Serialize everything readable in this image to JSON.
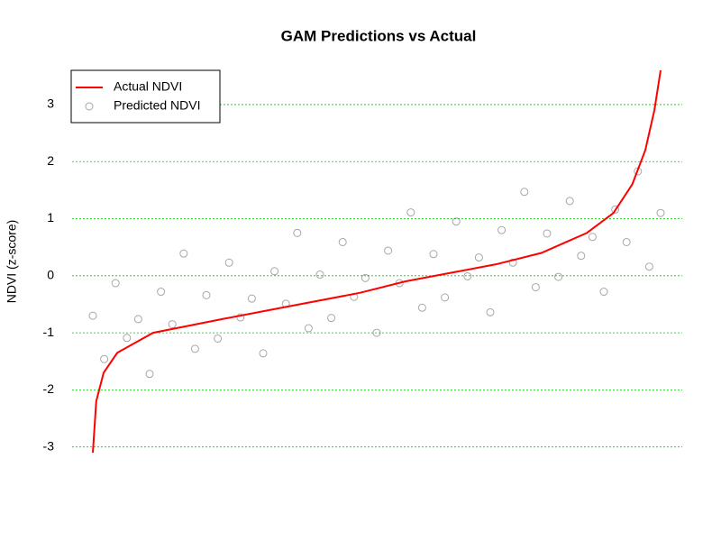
{
  "chart_data": {
    "type": "scatter",
    "title": "GAM Predictions vs Actual",
    "y_label": "NDVI (z-score)",
    "xlim": [
      0,
      100
    ],
    "ylim": [
      -3.4,
      3.9
    ],
    "yticks": [
      -3,
      -2,
      -1,
      0,
      1,
      2,
      3
    ],
    "grid": true,
    "grid_color": "#00cc00",
    "legend": "top-left",
    "series": [
      {
        "name": "Actual NDVI",
        "type": "line",
        "color": "#ff0000",
        "x": [
          0,
          0.6,
          1.9,
          4.3,
          10.6,
          23.3,
          31.2,
          47,
          55,
          63,
          71,
          79,
          87,
          91.7,
          95,
          97.3,
          98.9,
          100
        ],
        "values": [
          -3.1,
          -2.2,
          -1.7,
          -1.35,
          -1.0,
          -0.75,
          -0.6,
          -0.3,
          -0.1,
          0.05,
          0.2,
          0.4,
          0.75,
          1.1,
          1.6,
          2.2,
          2.9,
          3.6
        ]
      },
      {
        "name": "Predicted NDVI",
        "type": "scatter",
        "color": "#000000",
        "x": [
          0,
          2,
          4,
          6,
          8,
          10,
          12,
          14,
          16,
          18,
          20,
          22,
          24,
          26,
          28,
          30,
          32,
          34,
          36,
          38,
          40,
          42,
          44,
          46,
          48,
          50,
          52,
          54,
          56,
          58,
          60,
          62,
          64,
          66,
          68,
          70,
          72,
          74,
          76,
          78,
          80,
          82,
          84,
          86,
          88,
          90,
          92,
          94,
          96,
          98,
          100
        ],
        "values": [
          -0.7,
          -1.46,
          -0.13,
          -1.09,
          -0.76,
          -1.72,
          -0.28,
          -0.85,
          0.39,
          -1.28,
          -0.34,
          -1.1,
          0.23,
          -0.73,
          -0.4,
          -1.36,
          0.08,
          -0.49,
          0.75,
          -0.92,
          0.02,
          -0.74,
          0.59,
          -0.37,
          -0.04,
          -1.0,
          0.44,
          -0.13,
          1.11,
          -0.56,
          0.38,
          -0.38,
          0.95,
          -0.01,
          0.32,
          -0.64,
          0.8,
          0.23,
          1.47,
          -0.2,
          0.74,
          -0.02,
          1.31,
          0.35,
          0.68,
          -0.28,
          1.16,
          0.59,
          1.83,
          0.16,
          1.1
        ]
      }
    ]
  }
}
